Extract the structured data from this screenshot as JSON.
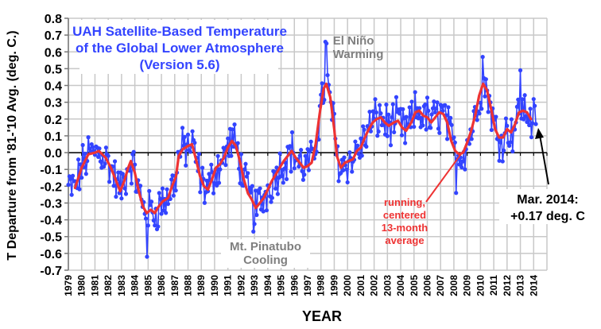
{
  "chart_data": {
    "type": "line",
    "title_lines": [
      "UAH Satellite-Based Temperature",
      "of the Global Lower Atmosphere",
      "(Version 5.6)"
    ],
    "xlabel": "YEAR",
    "ylabel": "T Departure from '81-'10 Avg. (deg. C.)",
    "ylim": [
      -0.7,
      0.8
    ],
    "yticks": [
      0.8,
      0.7,
      0.6,
      0.5,
      0.4,
      0.3,
      0.2,
      0.1,
      0.0,
      -0.1,
      -0.2,
      -0.3,
      -0.4,
      -0.5,
      -0.6,
      -0.7
    ],
    "ytick_labels": [
      "0.8",
      "0.7",
      "0.6",
      "0.5",
      "0.4",
      "0.3",
      "0.2",
      "0.1",
      "0.0",
      "-0.1",
      "-0.2",
      "-0.3",
      "-0.4",
      "-0.5",
      "-0.6",
      "-0.7"
    ],
    "xlim": [
      1979,
      2015
    ],
    "xticks": [
      "1979",
      "1980",
      "1981",
      "1982",
      "1983",
      "1984",
      "1985",
      "1986",
      "1987",
      "1988",
      "1989",
      "1990",
      "1991",
      "1992",
      "1993",
      "1994",
      "1995",
      "1996",
      "1997",
      "1998",
      "1999",
      "2000",
      "2001",
      "2002",
      "2003",
      "2004",
      "2005",
      "2006",
      "2007",
      "2008",
      "2009",
      "2010",
      "2011",
      "2012",
      "2013",
      "2014"
    ],
    "grid": true,
    "series": [
      {
        "name": "monthly",
        "color": "#3344ff",
        "marker": "circle",
        "approximate": true,
        "note": "Monthly values not individually legible; rendered as synthesized variation around the running average with visible extremes",
        "start": 1979.0,
        "end": 2014.2,
        "extremes": [
          {
            "x": 1998.3,
            "y": 0.66
          },
          {
            "x": 1998.4,
            "y": 0.65
          },
          {
            "x": 2010.2,
            "y": 0.57
          },
          {
            "x": 2013.0,
            "y": 0.49
          },
          {
            "x": 1984.9,
            "y": -0.62
          },
          {
            "x": 1992.9,
            "y": -0.47
          },
          {
            "x": 2008.2,
            "y": -0.24
          },
          {
            "x": 2014.17,
            "y": 0.17
          }
        ]
      },
      {
        "name": "running, centered 13-month average",
        "color": "#ee3333",
        "points": [
          [
            1979.5,
            -0.21
          ],
          [
            1980.0,
            -0.09
          ],
          [
            1980.5,
            -0.01
          ],
          [
            1981.0,
            0.0
          ],
          [
            1981.3,
            0.01
          ],
          [
            1981.8,
            -0.03
          ],
          [
            1982.2,
            -0.09
          ],
          [
            1982.6,
            -0.17
          ],
          [
            1982.9,
            -0.23
          ],
          [
            1983.2,
            -0.17
          ],
          [
            1983.5,
            -0.09
          ],
          [
            1983.7,
            -0.05
          ],
          [
            1984.0,
            -0.12
          ],
          [
            1984.3,
            -0.23
          ],
          [
            1984.6,
            -0.32
          ],
          [
            1984.9,
            -0.36
          ],
          [
            1985.2,
            -0.34
          ],
          [
            1985.5,
            -0.36
          ],
          [
            1985.8,
            -0.32
          ],
          [
            1986.1,
            -0.29
          ],
          [
            1986.5,
            -0.27
          ],
          [
            1986.8,
            -0.2
          ],
          [
            1987.1,
            -0.14
          ],
          [
            1987.3,
            -0.02
          ],
          [
            1987.6,
            0.02
          ],
          [
            1988.0,
            0.04
          ],
          [
            1988.3,
            0.05
          ],
          [
            1988.6,
            -0.04
          ],
          [
            1988.9,
            -0.14
          ],
          [
            1989.2,
            -0.2
          ],
          [
            1989.5,
            -0.22
          ],
          [
            1989.8,
            -0.16
          ],
          [
            1990.1,
            -0.09
          ],
          [
            1990.4,
            -0.07
          ],
          [
            1990.7,
            -0.03
          ],
          [
            1991.0,
            0.03
          ],
          [
            1991.3,
            0.07
          ],
          [
            1991.6,
            0.04
          ],
          [
            1991.9,
            -0.05
          ],
          [
            1992.2,
            -0.16
          ],
          [
            1992.5,
            -0.24
          ],
          [
            1992.8,
            -0.28
          ],
          [
            1993.1,
            -0.33
          ],
          [
            1993.4,
            -0.3
          ],
          [
            1993.7,
            -0.27
          ],
          [
            1994.0,
            -0.22
          ],
          [
            1994.3,
            -0.17
          ],
          [
            1994.6,
            -0.13
          ],
          [
            1994.9,
            -0.09
          ],
          [
            1995.2,
            -0.05
          ],
          [
            1995.5,
            -0.02
          ],
          [
            1995.8,
            0.01
          ],
          [
            1996.1,
            -0.03
          ],
          [
            1996.4,
            -0.06
          ],
          [
            1996.7,
            -0.09
          ],
          [
            1997.0,
            -0.08
          ],
          [
            1997.3,
            -0.06
          ],
          [
            1997.6,
            0.05
          ],
          [
            1997.9,
            0.23
          ],
          [
            1998.2,
            0.38
          ],
          [
            1998.4,
            0.41
          ],
          [
            1998.7,
            0.33
          ],
          [
            1999.0,
            0.14
          ],
          [
            1999.2,
            -0.02
          ],
          [
            1999.5,
            -0.09
          ],
          [
            1999.8,
            -0.06
          ],
          [
            2000.1,
            -0.05
          ],
          [
            2000.4,
            -0.04
          ],
          [
            2000.7,
            0.01
          ],
          [
            2001.0,
            0.03
          ],
          [
            2001.3,
            0.09
          ],
          [
            2001.6,
            0.14
          ],
          [
            2001.9,
            0.18
          ],
          [
            2002.2,
            0.2
          ],
          [
            2002.5,
            0.21
          ],
          [
            2002.8,
            0.18
          ],
          [
            2003.1,
            0.16
          ],
          [
            2003.5,
            0.18
          ],
          [
            2003.8,
            0.19
          ],
          [
            2004.1,
            0.15
          ],
          [
            2004.4,
            0.13
          ],
          [
            2004.8,
            0.18
          ],
          [
            2005.1,
            0.24
          ],
          [
            2005.4,
            0.25
          ],
          [
            2005.7,
            0.22
          ],
          [
            2006.0,
            0.21
          ],
          [
            2006.3,
            0.18
          ],
          [
            2006.6,
            0.21
          ],
          [
            2006.9,
            0.24
          ],
          [
            2007.2,
            0.23
          ],
          [
            2007.5,
            0.18
          ],
          [
            2007.8,
            0.07
          ],
          [
            2008.1,
            0.01
          ],
          [
            2008.4,
            -0.01
          ],
          [
            2008.7,
            0.0
          ],
          [
            2009.0,
            0.06
          ],
          [
            2009.3,
            0.13
          ],
          [
            2009.6,
            0.22
          ],
          [
            2009.9,
            0.34
          ],
          [
            2010.2,
            0.41
          ],
          [
            2010.5,
            0.37
          ],
          [
            2010.8,
            0.26
          ],
          [
            2011.1,
            0.14
          ],
          [
            2011.4,
            0.09
          ],
          [
            2011.7,
            0.09
          ],
          [
            2012.0,
            0.14
          ],
          [
            2012.3,
            0.12
          ],
          [
            2012.6,
            0.17
          ],
          [
            2012.9,
            0.24
          ],
          [
            2013.2,
            0.25
          ],
          [
            2013.5,
            0.24
          ],
          [
            2013.8,
            0.2
          ]
        ]
      }
    ],
    "annotations": [
      {
        "text_lines": [
          "El Niño",
          "Warming"
        ],
        "color": "#7f7f7f",
        "x": 1998.9,
        "y": 0.62
      },
      {
        "text_lines": [
          "Mt. Pinatubo",
          "Cooling"
        ],
        "color": "#7f7f7f",
        "x": 1993.8,
        "y": -0.52
      },
      {
        "text_lines": [
          "running,",
          "centered",
          "13-month",
          "average"
        ],
        "color": "#ee3333",
        "x": 2005.2,
        "y": -0.33,
        "arrow_to": [
          2009.0,
          0.0
        ]
      },
      {
        "text_lines": [
          "Mar. 2014:",
          "+0.17 deg. C"
        ],
        "color": "#000000",
        "x": 2015.0,
        "y": -0.52,
        "arrow_to": [
          2014.3,
          0.17
        ]
      }
    ]
  }
}
